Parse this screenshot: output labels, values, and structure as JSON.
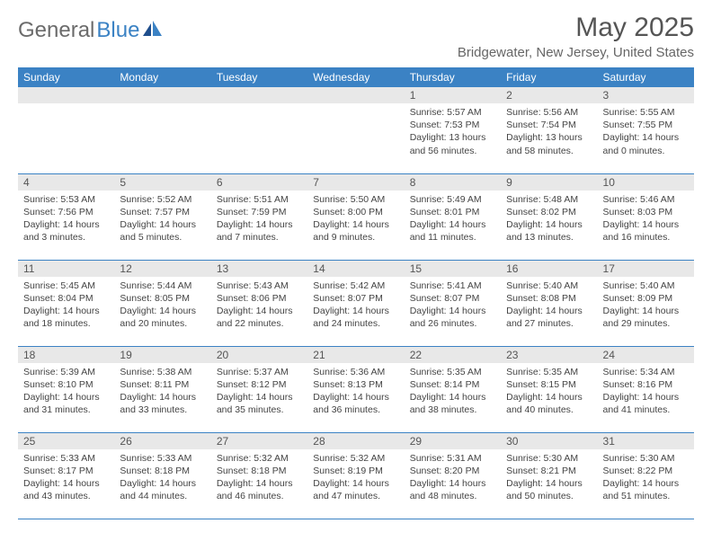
{
  "logo": {
    "gray": "General",
    "blue": "Blue"
  },
  "header": {
    "title": "May 2025",
    "location": "Bridgewater, New Jersey, United States"
  },
  "colors": {
    "header_bg": "#3b82c4",
    "header_fg": "#ffffff",
    "daynum_bg": "#e8e8e8",
    "row_border": "#3b82c4",
    "logo_gray": "#6b6b6b",
    "logo_blue": "#3b82c4"
  },
  "weekdays": [
    "Sunday",
    "Monday",
    "Tuesday",
    "Wednesday",
    "Thursday",
    "Friday",
    "Saturday"
  ],
  "weeks": [
    [
      null,
      null,
      null,
      null,
      {
        "n": "1",
        "sr": "Sunrise: 5:57 AM",
        "ss": "Sunset: 7:53 PM",
        "dl": "Daylight: 13 hours and 56 minutes."
      },
      {
        "n": "2",
        "sr": "Sunrise: 5:56 AM",
        "ss": "Sunset: 7:54 PM",
        "dl": "Daylight: 13 hours and 58 minutes."
      },
      {
        "n": "3",
        "sr": "Sunrise: 5:55 AM",
        "ss": "Sunset: 7:55 PM",
        "dl": "Daylight: 14 hours and 0 minutes."
      }
    ],
    [
      {
        "n": "4",
        "sr": "Sunrise: 5:53 AM",
        "ss": "Sunset: 7:56 PM",
        "dl": "Daylight: 14 hours and 3 minutes."
      },
      {
        "n": "5",
        "sr": "Sunrise: 5:52 AM",
        "ss": "Sunset: 7:57 PM",
        "dl": "Daylight: 14 hours and 5 minutes."
      },
      {
        "n": "6",
        "sr": "Sunrise: 5:51 AM",
        "ss": "Sunset: 7:59 PM",
        "dl": "Daylight: 14 hours and 7 minutes."
      },
      {
        "n": "7",
        "sr": "Sunrise: 5:50 AM",
        "ss": "Sunset: 8:00 PM",
        "dl": "Daylight: 14 hours and 9 minutes."
      },
      {
        "n": "8",
        "sr": "Sunrise: 5:49 AM",
        "ss": "Sunset: 8:01 PM",
        "dl": "Daylight: 14 hours and 11 minutes."
      },
      {
        "n": "9",
        "sr": "Sunrise: 5:48 AM",
        "ss": "Sunset: 8:02 PM",
        "dl": "Daylight: 14 hours and 13 minutes."
      },
      {
        "n": "10",
        "sr": "Sunrise: 5:46 AM",
        "ss": "Sunset: 8:03 PM",
        "dl": "Daylight: 14 hours and 16 minutes."
      }
    ],
    [
      {
        "n": "11",
        "sr": "Sunrise: 5:45 AM",
        "ss": "Sunset: 8:04 PM",
        "dl": "Daylight: 14 hours and 18 minutes."
      },
      {
        "n": "12",
        "sr": "Sunrise: 5:44 AM",
        "ss": "Sunset: 8:05 PM",
        "dl": "Daylight: 14 hours and 20 minutes."
      },
      {
        "n": "13",
        "sr": "Sunrise: 5:43 AM",
        "ss": "Sunset: 8:06 PM",
        "dl": "Daylight: 14 hours and 22 minutes."
      },
      {
        "n": "14",
        "sr": "Sunrise: 5:42 AM",
        "ss": "Sunset: 8:07 PM",
        "dl": "Daylight: 14 hours and 24 minutes."
      },
      {
        "n": "15",
        "sr": "Sunrise: 5:41 AM",
        "ss": "Sunset: 8:07 PM",
        "dl": "Daylight: 14 hours and 26 minutes."
      },
      {
        "n": "16",
        "sr": "Sunrise: 5:40 AM",
        "ss": "Sunset: 8:08 PM",
        "dl": "Daylight: 14 hours and 27 minutes."
      },
      {
        "n": "17",
        "sr": "Sunrise: 5:40 AM",
        "ss": "Sunset: 8:09 PM",
        "dl": "Daylight: 14 hours and 29 minutes."
      }
    ],
    [
      {
        "n": "18",
        "sr": "Sunrise: 5:39 AM",
        "ss": "Sunset: 8:10 PM",
        "dl": "Daylight: 14 hours and 31 minutes."
      },
      {
        "n": "19",
        "sr": "Sunrise: 5:38 AM",
        "ss": "Sunset: 8:11 PM",
        "dl": "Daylight: 14 hours and 33 minutes."
      },
      {
        "n": "20",
        "sr": "Sunrise: 5:37 AM",
        "ss": "Sunset: 8:12 PM",
        "dl": "Daylight: 14 hours and 35 minutes."
      },
      {
        "n": "21",
        "sr": "Sunrise: 5:36 AM",
        "ss": "Sunset: 8:13 PM",
        "dl": "Daylight: 14 hours and 36 minutes."
      },
      {
        "n": "22",
        "sr": "Sunrise: 5:35 AM",
        "ss": "Sunset: 8:14 PM",
        "dl": "Daylight: 14 hours and 38 minutes."
      },
      {
        "n": "23",
        "sr": "Sunrise: 5:35 AM",
        "ss": "Sunset: 8:15 PM",
        "dl": "Daylight: 14 hours and 40 minutes."
      },
      {
        "n": "24",
        "sr": "Sunrise: 5:34 AM",
        "ss": "Sunset: 8:16 PM",
        "dl": "Daylight: 14 hours and 41 minutes."
      }
    ],
    [
      {
        "n": "25",
        "sr": "Sunrise: 5:33 AM",
        "ss": "Sunset: 8:17 PM",
        "dl": "Daylight: 14 hours and 43 minutes."
      },
      {
        "n": "26",
        "sr": "Sunrise: 5:33 AM",
        "ss": "Sunset: 8:18 PM",
        "dl": "Daylight: 14 hours and 44 minutes."
      },
      {
        "n": "27",
        "sr": "Sunrise: 5:32 AM",
        "ss": "Sunset: 8:18 PM",
        "dl": "Daylight: 14 hours and 46 minutes."
      },
      {
        "n": "28",
        "sr": "Sunrise: 5:32 AM",
        "ss": "Sunset: 8:19 PM",
        "dl": "Daylight: 14 hours and 47 minutes."
      },
      {
        "n": "29",
        "sr": "Sunrise: 5:31 AM",
        "ss": "Sunset: 8:20 PM",
        "dl": "Daylight: 14 hours and 48 minutes."
      },
      {
        "n": "30",
        "sr": "Sunrise: 5:30 AM",
        "ss": "Sunset: 8:21 PM",
        "dl": "Daylight: 14 hours and 50 minutes."
      },
      {
        "n": "31",
        "sr": "Sunrise: 5:30 AM",
        "ss": "Sunset: 8:22 PM",
        "dl": "Daylight: 14 hours and 51 minutes."
      }
    ]
  ]
}
